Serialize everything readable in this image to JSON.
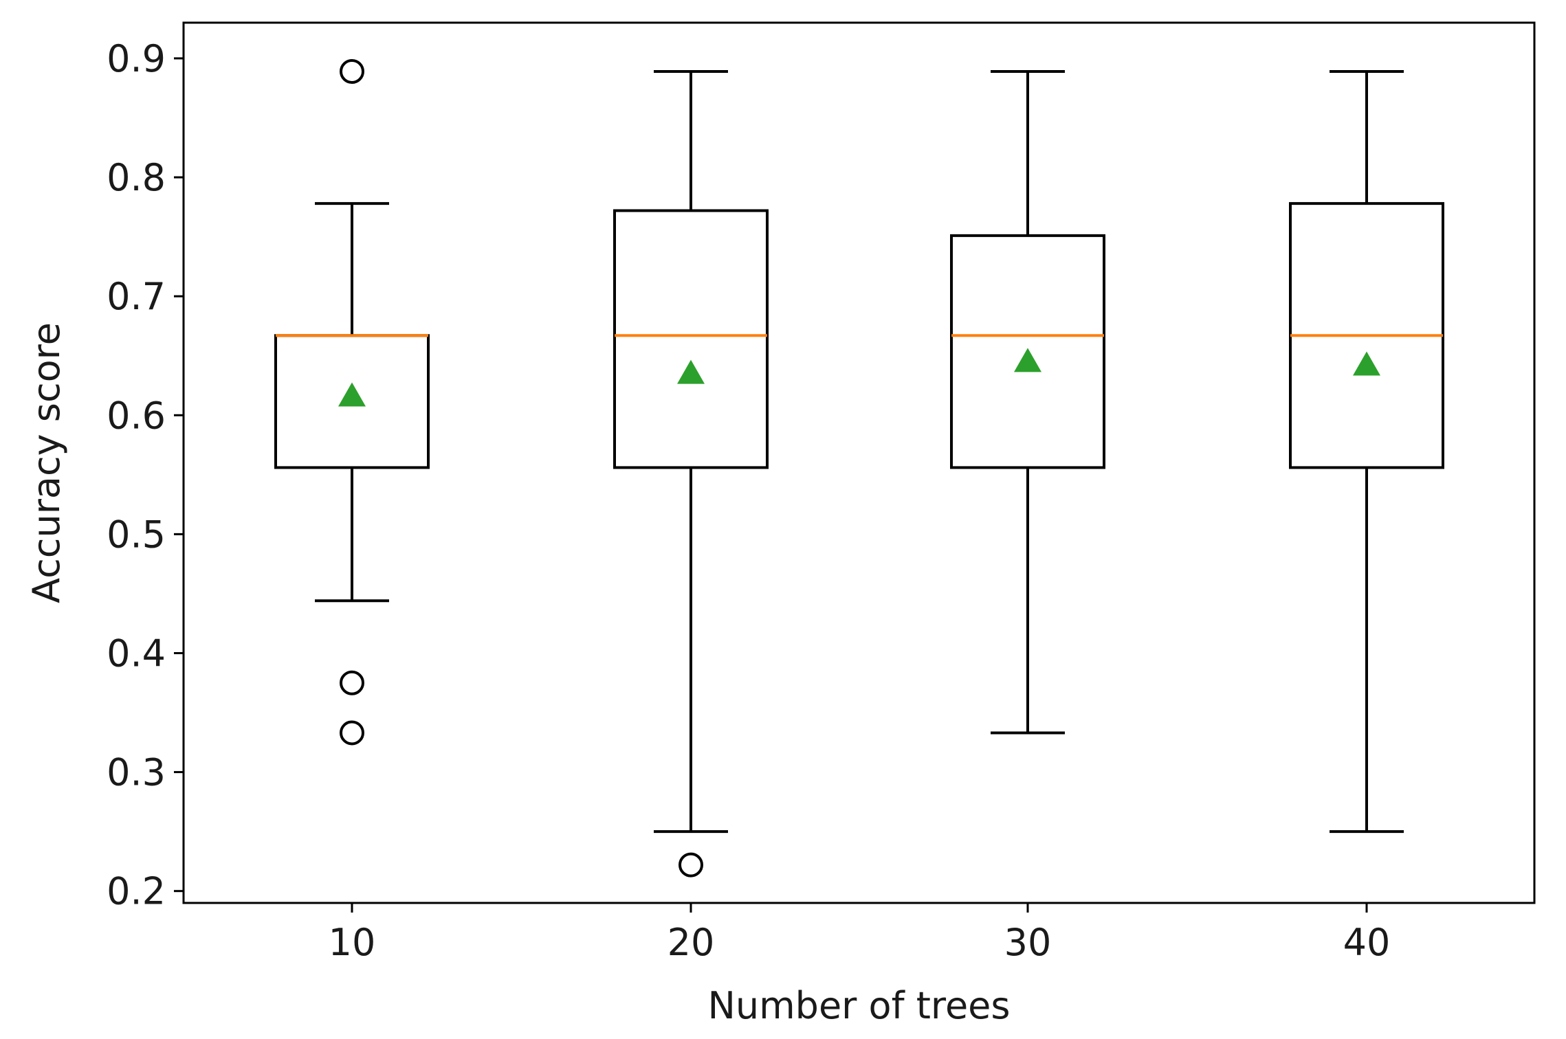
{
  "chart_data": {
    "type": "boxplot",
    "title": "",
    "xlabel": "Number of trees",
    "ylabel": "Accuracy score",
    "categories": [
      "10",
      "20",
      "30",
      "40"
    ],
    "ylim": [
      0.19,
      0.93
    ],
    "yticks": [
      0.2,
      0.3,
      0.4,
      0.5,
      0.6,
      0.7,
      0.8,
      0.9
    ],
    "ytick_labels": [
      "0.2",
      "0.3",
      "0.4",
      "0.5",
      "0.6",
      "0.7",
      "0.8",
      "0.9"
    ],
    "grid": false,
    "boxes": [
      {
        "category": "10",
        "whisker_low": 0.444,
        "q1": 0.556,
        "median": 0.667,
        "q3": 0.667,
        "whisker_high": 0.778,
        "mean": 0.616,
        "outliers": [
          0.889,
          0.375,
          0.333
        ]
      },
      {
        "category": "20",
        "whisker_low": 0.25,
        "q1": 0.556,
        "median": 0.667,
        "q3": 0.772,
        "whisker_high": 0.889,
        "mean": 0.635,
        "outliers": [
          0.222
        ]
      },
      {
        "category": "30",
        "whisker_low": 0.333,
        "q1": 0.556,
        "median": 0.667,
        "q3": 0.751,
        "whisker_high": 0.889,
        "mean": 0.645,
        "outliers": []
      },
      {
        "category": "40",
        "whisker_low": 0.25,
        "q1": 0.556,
        "median": 0.667,
        "q3": 0.778,
        "whisker_high": 0.889,
        "mean": 0.642,
        "outliers": []
      }
    ],
    "colors": {
      "box": "#000000",
      "median": "#ff7f0e",
      "mean_marker": "#2ca02c",
      "outlier": "#000000",
      "frame": "#000000"
    }
  }
}
